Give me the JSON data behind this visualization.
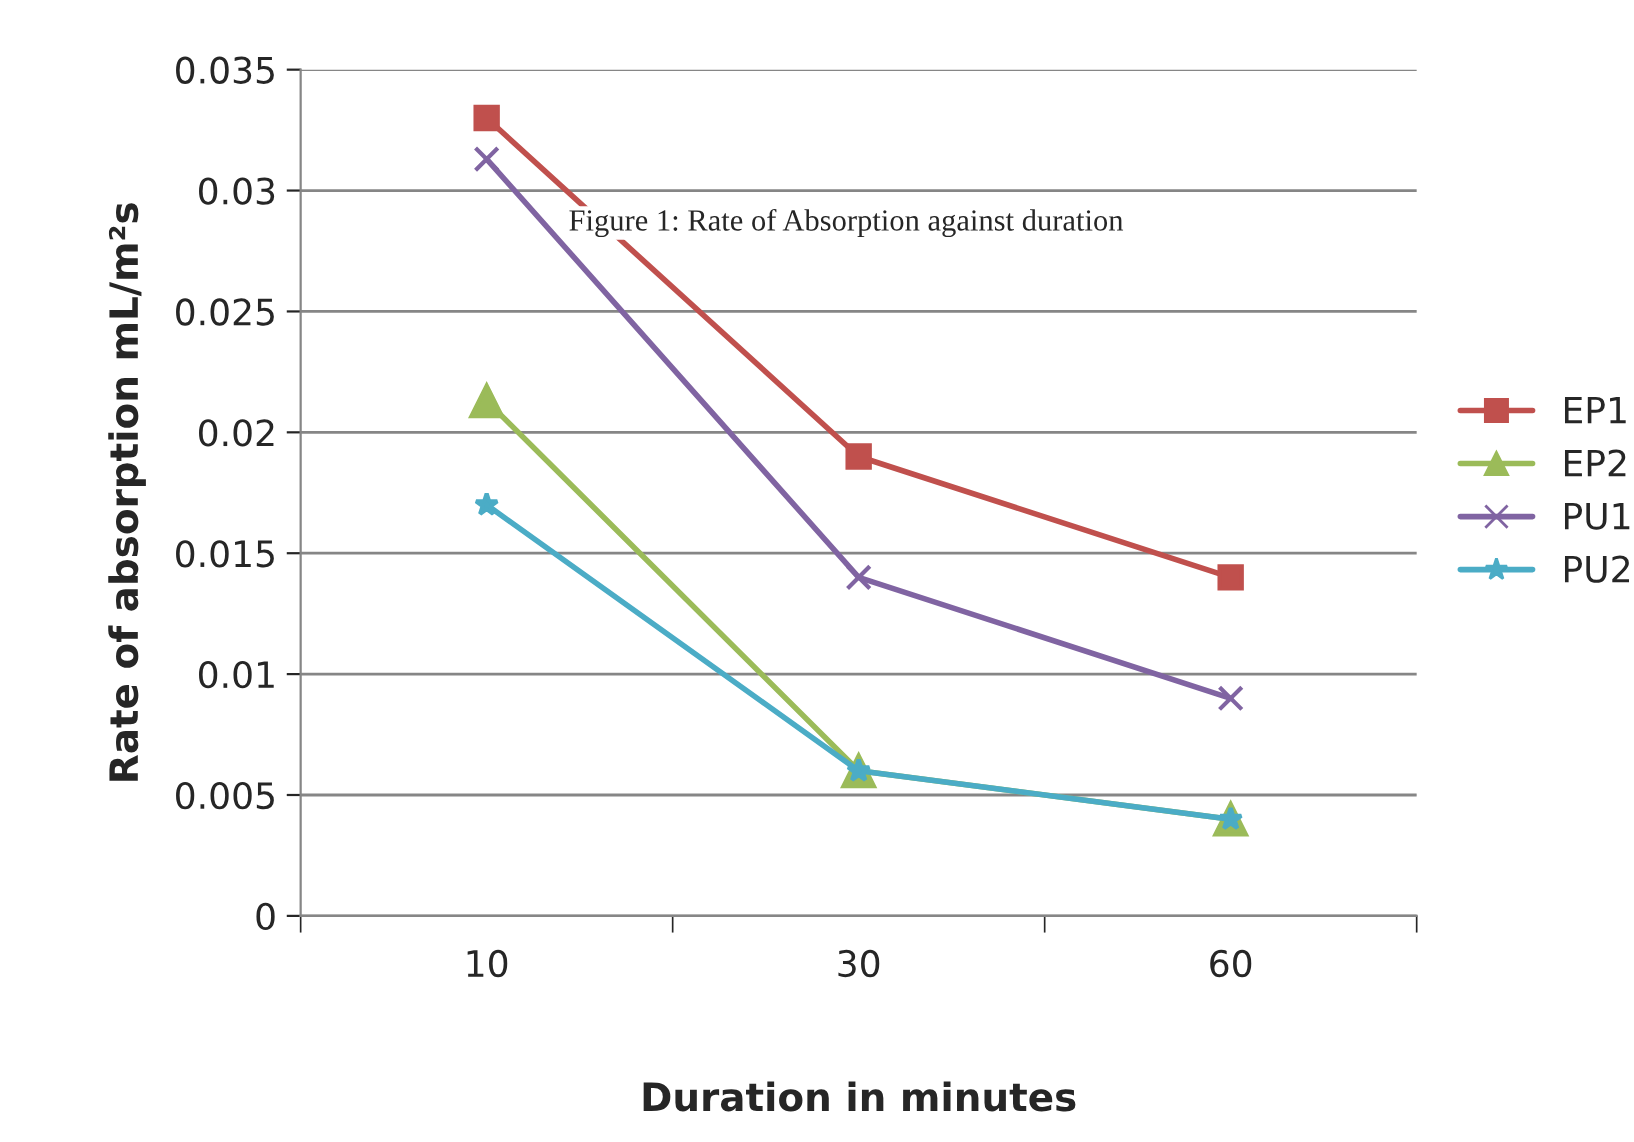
{
  "chart_data": {
    "type": "line",
    "xlabel": "Duration in minutes",
    "ylabel": "Rate of absorption mL/m²s",
    "annotations": [
      "Figure 1: Rate of Absorption against duration"
    ],
    "categories": [
      "10",
      "30",
      "60"
    ],
    "series": [
      {
        "name": "EP1",
        "color": "#c0504d",
        "marker": "square",
        "values": [
          0.033,
          0.019,
          0.014
        ]
      },
      {
        "name": "EP2",
        "color": "#9bbb59",
        "marker": "triangle",
        "values": [
          0.0213,
          0.006,
          0.004
        ]
      },
      {
        "name": "PU1",
        "color": "#8064a2",
        "marker": "cross",
        "values": [
          0.0313,
          0.014,
          0.009
        ]
      },
      {
        "name": "PU2",
        "color": "#4bacc6",
        "marker": "star",
        "values": [
          0.017,
          0.006,
          0.004
        ]
      }
    ],
    "ylim": [
      0,
      0.035
    ],
    "yticks": [
      0,
      0.005,
      0.01,
      0.015,
      0.02,
      0.025,
      0.03,
      0.035
    ],
    "grid": "y",
    "legend": "right",
    "line_style": "solid"
  }
}
